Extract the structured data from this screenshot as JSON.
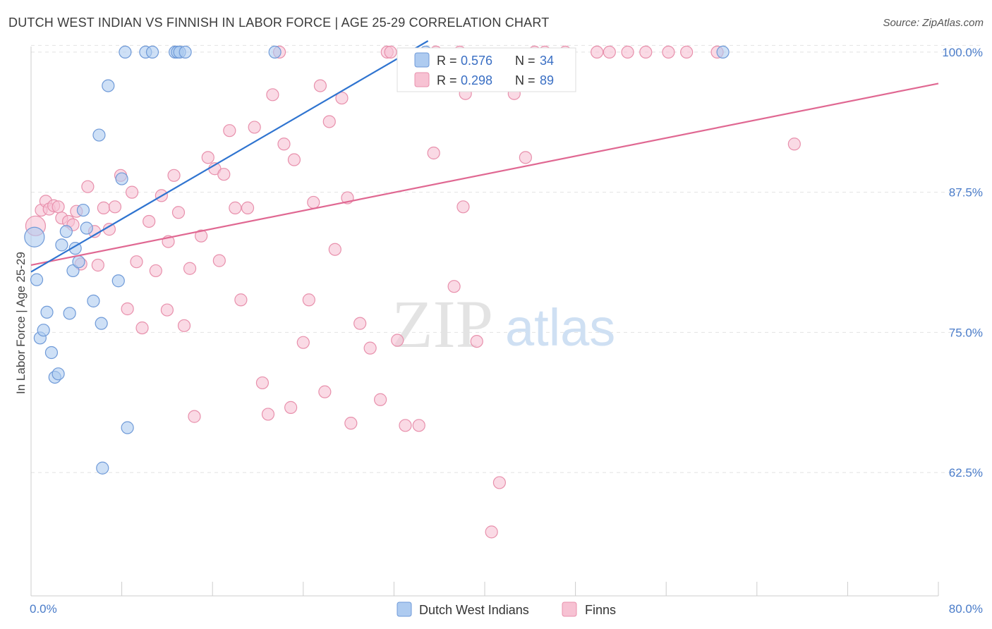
{
  "header": {
    "title": "DUTCH WEST INDIAN VS FINNISH IN LABOR FORCE | AGE 25-29 CORRELATION CHART",
    "source": "Source: ZipAtlas.com"
  },
  "watermark": {
    "zip": "ZIP",
    "atlas": "atlas"
  },
  "legend": {
    "r_label": "R =",
    "n_label": "N =",
    "series": [
      {
        "r": "0.576",
        "n": "34"
      },
      {
        "r": "0.298",
        "n": "89"
      }
    ]
  },
  "colors": {
    "blue_fill": "#aecbf0",
    "blue_stroke": "#6f9ad8",
    "blue_line": "#2f74d0",
    "pink_fill": "#f7c2d3",
    "pink_stroke": "#e890ac",
    "pink_line": "#e06892",
    "tick": "#4a7cc9",
    "grid": "#e2e2e2"
  },
  "chart_data": {
    "type": "scatter",
    "title": "DUTCH WEST INDIAN VS FINNISH IN LABOR FORCE | AGE 25-29 CORRELATION CHART",
    "xlabel": "",
    "ylabel": "In Labor Force | Age 25-29",
    "xlim": [
      0,
      80
    ],
    "ylim": [
      51.5,
      101
    ],
    "x_tick_labels": [
      "0.0%",
      "80.0%"
    ],
    "y_ticks": [
      62.5,
      75.0,
      87.5,
      100.0
    ],
    "y_tick_labels": [
      "62.5%",
      "75.0%",
      "87.5%",
      "100.0%"
    ],
    "grid": true,
    "series": [
      {
        "name": "Dutch West Indians",
        "color": "#aecbf0",
        "r": 0.576,
        "n": 34,
        "trend": {
          "x": [
            0,
            35.0
          ],
          "y": [
            80.4,
            101.0
          ]
        },
        "points": [
          [
            0.3,
            83.5
          ],
          [
            0.5,
            79.7
          ],
          [
            0.8,
            74.5
          ],
          [
            1.1,
            75.2
          ],
          [
            1.4,
            76.8
          ],
          [
            1.8,
            73.2
          ],
          [
            2.1,
            71.0
          ],
          [
            2.4,
            71.3
          ],
          [
            2.7,
            82.8
          ],
          [
            3.1,
            84.0
          ],
          [
            3.4,
            76.7
          ],
          [
            3.7,
            80.5
          ],
          [
            3.9,
            82.5
          ],
          [
            4.2,
            81.3
          ],
          [
            4.6,
            85.9
          ],
          [
            4.9,
            84.3
          ],
          [
            5.5,
            77.8
          ],
          [
            6.0,
            92.6
          ],
          [
            6.2,
            75.8
          ],
          [
            6.3,
            62.9
          ],
          [
            6.8,
            97.0
          ],
          [
            7.7,
            79.6
          ],
          [
            8.0,
            88.7
          ],
          [
            8.3,
            100.0
          ],
          [
            8.5,
            66.5
          ],
          [
            10.1,
            100.0
          ],
          [
            10.7,
            100.0
          ],
          [
            12.7,
            100.0
          ],
          [
            12.9,
            100.0
          ],
          [
            13.1,
            100.0
          ],
          [
            13.6,
            100.0
          ],
          [
            21.5,
            100.0
          ],
          [
            34.8,
            100.0
          ],
          [
            61.0,
            100.0
          ]
        ]
      },
      {
        "name": "Finns",
        "color": "#f7c2d3",
        "r": 0.298,
        "n": 89,
        "trend": {
          "x": [
            0,
            80
          ],
          "y": [
            81.0,
            97.2
          ]
        },
        "points": [
          [
            0.4,
            84.5
          ],
          [
            0.9,
            85.9
          ],
          [
            1.3,
            86.7
          ],
          [
            1.6,
            86.0
          ],
          [
            2.0,
            86.3
          ],
          [
            2.4,
            86.2
          ],
          [
            2.7,
            85.2
          ],
          [
            3.3,
            84.9
          ],
          [
            3.7,
            84.6
          ],
          [
            4.0,
            85.8
          ],
          [
            4.4,
            81.1
          ],
          [
            5.0,
            88.0
          ],
          [
            5.6,
            84.0
          ],
          [
            5.9,
            81.0
          ],
          [
            6.4,
            86.1
          ],
          [
            6.9,
            84.2
          ],
          [
            7.4,
            86.2
          ],
          [
            7.9,
            89.0
          ],
          [
            8.5,
            77.1
          ],
          [
            8.9,
            87.5
          ],
          [
            9.3,
            81.3
          ],
          [
            9.8,
            75.4
          ],
          [
            10.4,
            84.9
          ],
          [
            11.0,
            80.5
          ],
          [
            11.5,
            87.2
          ],
          [
            12.0,
            77.0
          ],
          [
            12.1,
            83.1
          ],
          [
            12.6,
            89.0
          ],
          [
            13.0,
            85.7
          ],
          [
            13.5,
            75.6
          ],
          [
            14.0,
            80.7
          ],
          [
            14.4,
            67.5
          ],
          [
            15.0,
            83.6
          ],
          [
            15.6,
            90.6
          ],
          [
            16.2,
            89.6
          ],
          [
            16.6,
            81.4
          ],
          [
            17.0,
            89.1
          ],
          [
            17.5,
            93.0
          ],
          [
            18.0,
            86.1
          ],
          [
            18.5,
            77.9
          ],
          [
            19.1,
            86.1
          ],
          [
            19.7,
            93.3
          ],
          [
            20.4,
            70.5
          ],
          [
            20.9,
            67.7
          ],
          [
            21.3,
            96.2
          ],
          [
            21.9,
            100.0
          ],
          [
            22.3,
            91.8
          ],
          [
            22.9,
            68.3
          ],
          [
            23.2,
            90.4
          ],
          [
            24.0,
            74.1
          ],
          [
            24.5,
            77.9
          ],
          [
            24.9,
            86.6
          ],
          [
            25.5,
            97.0
          ],
          [
            25.9,
            69.7
          ],
          [
            26.3,
            93.8
          ],
          [
            26.8,
            82.4
          ],
          [
            27.4,
            95.9
          ],
          [
            27.9,
            87.0
          ],
          [
            28.2,
            66.9
          ],
          [
            29.0,
            75.8
          ],
          [
            29.9,
            73.6
          ],
          [
            30.8,
            69.0
          ],
          [
            31.4,
            100.0
          ],
          [
            31.7,
            100.0
          ],
          [
            32.3,
            74.3
          ],
          [
            33.0,
            66.7
          ],
          [
            34.2,
            66.7
          ],
          [
            35.5,
            91.0
          ],
          [
            37.3,
            79.1
          ],
          [
            37.8,
            100.0
          ],
          [
            38.1,
            86.2
          ],
          [
            38.3,
            96.3
          ],
          [
            39.3,
            74.2
          ],
          [
            40.6,
            57.2
          ],
          [
            41.3,
            61.6
          ],
          [
            42.6,
            96.3
          ],
          [
            43.6,
            90.6
          ],
          [
            44.4,
            100.0
          ],
          [
            45.3,
            100.0
          ],
          [
            47.1,
            100.0
          ],
          [
            49.9,
            100.0
          ],
          [
            51.0,
            100.0
          ],
          [
            52.6,
            100.0
          ],
          [
            54.2,
            100.0
          ],
          [
            56.2,
            100.0
          ],
          [
            57.8,
            100.0
          ],
          [
            60.5,
            100.0
          ],
          [
            67.3,
            91.8
          ],
          [
            35.7,
            100.0
          ]
        ]
      }
    ]
  }
}
